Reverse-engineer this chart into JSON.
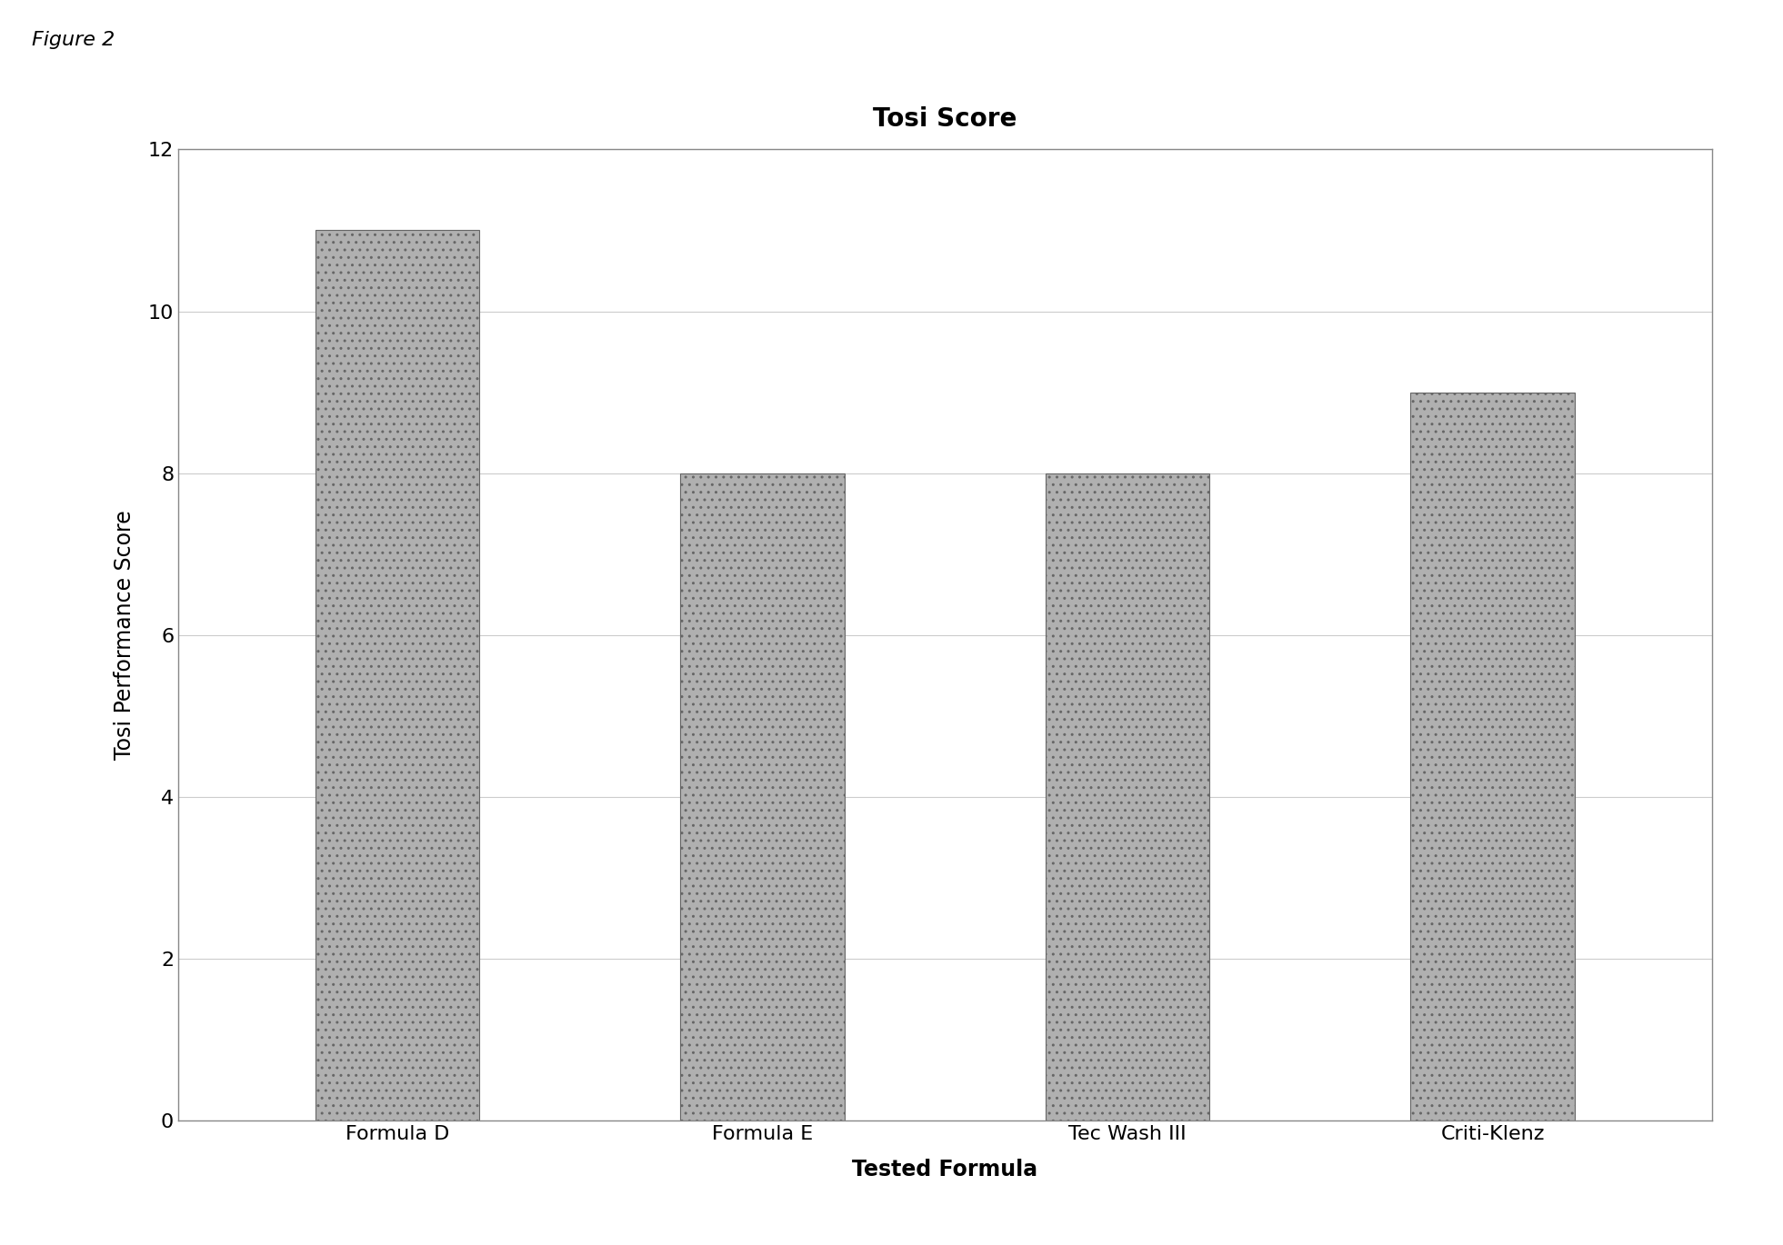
{
  "title": "Tosi Score",
  "xlabel": "Tested Formula",
  "ylabel": "Tosi Performance Score",
  "categories": [
    "Formula D",
    "Formula E",
    "Tec Wash III",
    "Criti-Klenz"
  ],
  "values": [
    11,
    8,
    8,
    9
  ],
  "bar_color": "#b0b0b0",
  "bar_edgecolor": "#666666",
  "ylim": [
    0,
    12
  ],
  "yticks": [
    0,
    2,
    4,
    6,
    8,
    10,
    12
  ],
  "background_color": "#ffffff",
  "plot_bg_color": "#ffffff",
  "figure_label": "Figure 2",
  "title_fontsize": 20,
  "axis_label_fontsize": 17,
  "tick_fontsize": 16,
  "figure_label_fontsize": 16,
  "bar_width": 0.45,
  "grid_color": "#cccccc",
  "frame_color": "#888888"
}
